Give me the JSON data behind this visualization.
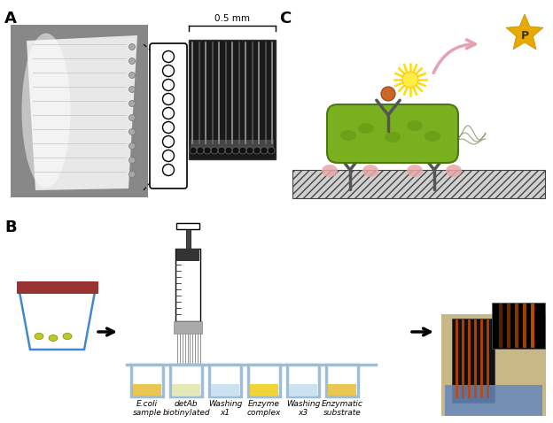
{
  "panel_A_label": "A",
  "panel_B_label": "B",
  "panel_C_label": "C",
  "scale_bar_text": "0.5 mm",
  "step_labels": [
    "E.coli\nsample",
    "detAb\nbiotinylated",
    "Washing\nx1",
    "Enzyme\ncomplex",
    "Washing\nx3",
    "Enzymatic\nsubstrate"
  ],
  "trough_colors": [
    "#e8c040",
    "#e0e8b0",
    "#c8dff0",
    "#f0d020",
    "#c8dff0",
    "#e8c040"
  ],
  "bg_color": "#ffffff",
  "label_fontsize": 13,
  "step_fontsize": 6.5,
  "p_label": "P"
}
